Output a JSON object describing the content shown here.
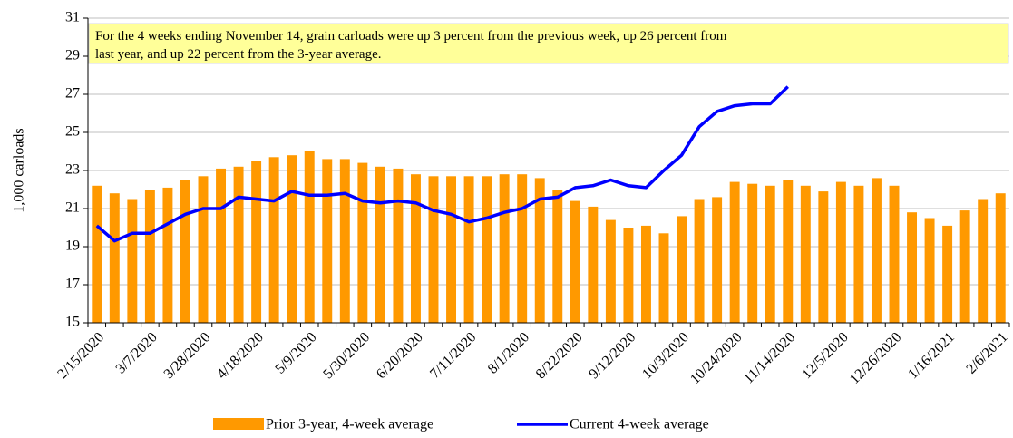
{
  "chart_data": {
    "type": "bar-line",
    "y_label": "1,000  carloads",
    "annotation": [
      "For the 4 weeks ending November 14, grain carloads were up 3 percent from the previous week, up 26 percent from",
      "last year, and up 22 percent from the 3-year average."
    ],
    "categories": [
      "2/15/2020",
      null,
      null,
      "3/7/2020",
      null,
      null,
      "3/28/2020",
      null,
      null,
      "4/18/2020",
      null,
      null,
      "5/9/2020",
      null,
      null,
      "5/30/2020",
      null,
      null,
      "6/20/2020",
      null,
      null,
      "7/11/2020",
      null,
      null,
      "8/1/2020",
      null,
      null,
      "8/22/2020",
      null,
      null,
      "9/12/2020",
      null,
      null,
      "10/3/2020",
      null,
      null,
      "10/24/2020",
      null,
      null,
      "11/14/2020",
      null,
      null,
      "12/5/2020",
      null,
      null,
      "12/26/2020",
      null,
      null,
      "1/16/2021",
      null,
      null,
      "2/6/2021"
    ],
    "series": [
      {
        "name": "Prior 3-year, 4-week average",
        "type": "bar",
        "color": "#ff9900",
        "values": [
          22.2,
          21.8,
          21.5,
          22.0,
          22.1,
          22.5,
          22.7,
          23.1,
          23.2,
          23.5,
          23.7,
          23.8,
          24.0,
          23.6,
          23.6,
          23.4,
          23.2,
          23.1,
          22.8,
          22.7,
          22.7,
          22.7,
          22.7,
          22.8,
          22.8,
          22.6,
          22.0,
          21.4,
          21.1,
          20.4,
          20.0,
          20.1,
          19.7,
          20.6,
          21.5,
          21.6,
          22.4,
          22.3,
          22.2,
          22.5,
          22.2,
          21.9,
          22.4,
          22.2,
          22.6,
          22.2,
          20.8,
          20.5,
          20.1,
          20.9,
          21.5,
          21.8
        ]
      },
      {
        "name": "Current 4-week average",
        "type": "line",
        "color": "#0000ff",
        "values": [
          20.1,
          19.3,
          19.7,
          19.7,
          20.2,
          20.7,
          21.0,
          21.0,
          21.6,
          21.5,
          21.4,
          21.9,
          21.7,
          21.7,
          21.8,
          21.4,
          21.3,
          21.4,
          21.3,
          20.9,
          20.7,
          20.3,
          20.5,
          20.8,
          21.0,
          21.5,
          21.6,
          22.1,
          22.2,
          22.5,
          22.2,
          22.1,
          23.0,
          23.8,
          25.3,
          26.1,
          26.4,
          26.5,
          26.5,
          27.4,
          null,
          null,
          null,
          null,
          null,
          null,
          null,
          null,
          null,
          null,
          null,
          null
        ]
      }
    ],
    "ylim": [
      15,
      31
    ],
    "yticks": [
      15,
      17,
      19,
      21,
      23,
      25,
      27,
      29,
      31
    ],
    "grid": true
  }
}
